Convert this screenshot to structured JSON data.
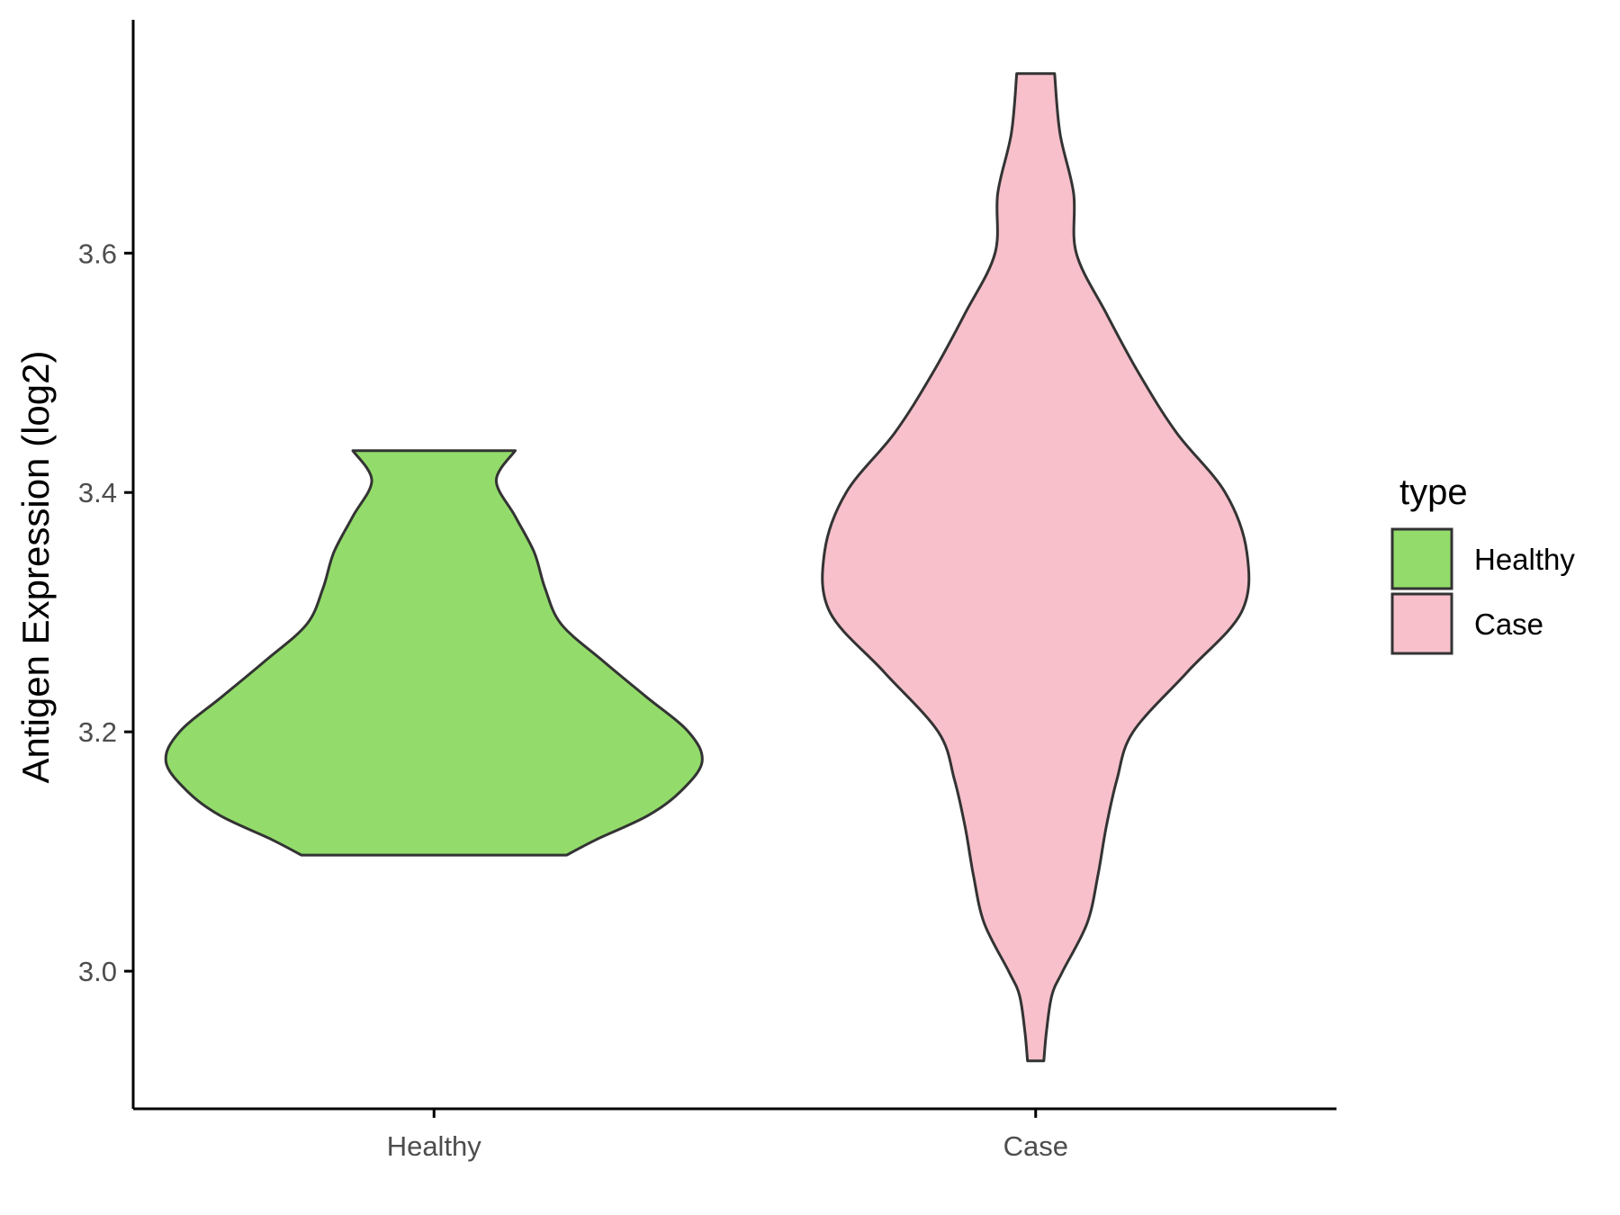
{
  "chart_data": {
    "type": "violin",
    "title": "",
    "xlabel": "",
    "ylabel": "Antigen Expression (log2)",
    "categories": [
      "Healthy",
      "Case"
    ],
    "yticks": [
      "3.0",
      "3.2",
      "3.4",
      "3.6"
    ],
    "ytick_values": [
      3.0,
      3.2,
      3.4,
      3.6
    ],
    "ylim": [
      2.885,
      3.795
    ],
    "grid": false,
    "legend": {
      "title": "type",
      "position": "right",
      "entries": [
        {
          "label": "Healthy",
          "color": "#93dc6b"
        },
        {
          "label": "Case",
          "color": "#f7c0cb"
        }
      ]
    },
    "series": [
      {
        "category": "Healthy",
        "color": "#93dc6b",
        "min": 3.097,
        "max": 3.435,
        "density": [
          {
            "y": 3.097,
            "w": 0.49
          },
          {
            "y": 3.11,
            "w": 0.6
          },
          {
            "y": 3.13,
            "w": 0.79
          },
          {
            "y": 3.15,
            "w": 0.91
          },
          {
            "y": 3.175,
            "w": 0.99
          },
          {
            "y": 3.2,
            "w": 0.94
          },
          {
            "y": 3.23,
            "w": 0.78
          },
          {
            "y": 3.26,
            "w": 0.62
          },
          {
            "y": 3.29,
            "w": 0.47
          },
          {
            "y": 3.32,
            "w": 0.41
          },
          {
            "y": 3.35,
            "w": 0.37
          },
          {
            "y": 3.38,
            "w": 0.3
          },
          {
            "y": 3.41,
            "w": 0.23
          },
          {
            "y": 3.435,
            "w": 0.3
          }
        ]
      },
      {
        "category": "Case",
        "color": "#f7c0cb",
        "min": 2.925,
        "max": 3.75,
        "density": [
          {
            "y": 2.925,
            "w": 0.03
          },
          {
            "y": 2.95,
            "w": 0.04
          },
          {
            "y": 2.98,
            "w": 0.06
          },
          {
            "y": 3.0,
            "w": 0.1
          },
          {
            "y": 3.04,
            "w": 0.19
          },
          {
            "y": 3.08,
            "w": 0.23
          },
          {
            "y": 3.12,
            "w": 0.26
          },
          {
            "y": 3.16,
            "w": 0.3
          },
          {
            "y": 3.2,
            "w": 0.36
          },
          {
            "y": 3.25,
            "w": 0.56
          },
          {
            "y": 3.3,
            "w": 0.76
          },
          {
            "y": 3.35,
            "w": 0.78
          },
          {
            "y": 3.4,
            "w": 0.7
          },
          {
            "y": 3.45,
            "w": 0.52
          },
          {
            "y": 3.5,
            "w": 0.38
          },
          {
            "y": 3.55,
            "w": 0.26
          },
          {
            "y": 3.6,
            "w": 0.15
          },
          {
            "y": 3.65,
            "w": 0.14
          },
          {
            "y": 3.7,
            "w": 0.09
          },
          {
            "y": 3.75,
            "w": 0.07
          }
        ]
      }
    ]
  }
}
